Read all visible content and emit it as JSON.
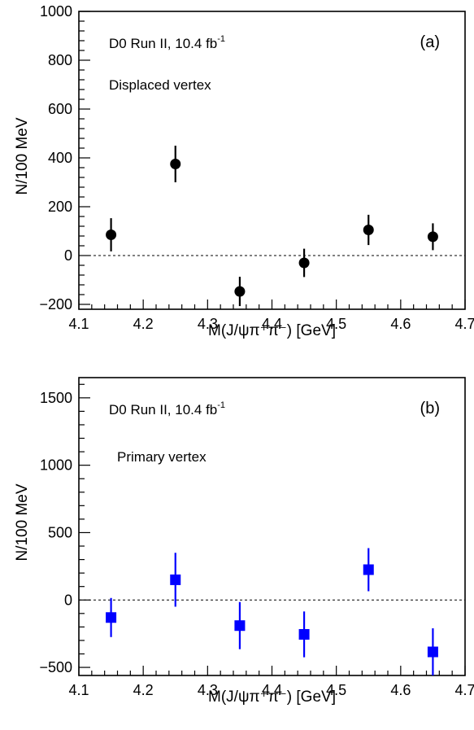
{
  "chart_data": [
    {
      "type": "scatter",
      "panel_label": "(a)",
      "annotation_main": "D0 Run II, 10.4 fb",
      "annotation_sup": "-1",
      "annotation_sub": "Displaced vertex",
      "xlabel": "M(J/ψπ⁺π⁻)  [GeV]",
      "ylabel": "N/100 MeV",
      "xlim": [
        4.1,
        4.7
      ],
      "ylim": [
        -220,
        1000
      ],
      "x_ticks": [
        4.1,
        4.2,
        4.3,
        4.4,
        4.5,
        4.6,
        4.7
      ],
      "y_ticks": [
        -200,
        0,
        200,
        400,
        600,
        800,
        1000
      ],
      "y_tick_labels": [
        "−200",
        "0",
        "200",
        "400",
        "600",
        "800",
        "1000"
      ],
      "zero_line": true,
      "marker": "circle",
      "color": "#000000",
      "points": [
        {
          "x": 4.15,
          "y": 85,
          "err": 68
        },
        {
          "x": 4.25,
          "y": 375,
          "err": 75
        },
        {
          "x": 4.35,
          "y": -147,
          "err": 60
        },
        {
          "x": 4.45,
          "y": -30,
          "err": 58
        },
        {
          "x": 4.55,
          "y": 105,
          "err": 62
        },
        {
          "x": 4.65,
          "y": 77,
          "err": 55
        }
      ]
    },
    {
      "type": "scatter",
      "panel_label": "(b)",
      "annotation_main": "D0 Run II, 10.4 fb",
      "annotation_sup": "-1",
      "annotation_sub": "Primary vertex",
      "xlabel": "M(J/ψπ⁺π⁻)  [GeV]",
      "ylabel": "N/100 MeV",
      "xlim": [
        4.1,
        4.7
      ],
      "ylim": [
        -560,
        1650
      ],
      "x_ticks": [
        4.1,
        4.2,
        4.3,
        4.4,
        4.5,
        4.6,
        4.7
      ],
      "y_ticks": [
        -500,
        0,
        500,
        1000,
        1500
      ],
      "y_tick_labels": [
        "−500",
        "0",
        "500",
        "1000",
        "1500"
      ],
      "zero_line": true,
      "marker": "square",
      "color": "#0000ff",
      "points": [
        {
          "x": 4.15,
          "y": -130,
          "err": 145
        },
        {
          "x": 4.25,
          "y": 150,
          "err": 200
        },
        {
          "x": 4.35,
          "y": -190,
          "err": 175
        },
        {
          "x": 4.45,
          "y": -255,
          "err": 170
        },
        {
          "x": 4.55,
          "y": 225,
          "err": 160
        },
        {
          "x": 4.65,
          "y": -385,
          "err": 175
        }
      ]
    }
  ]
}
